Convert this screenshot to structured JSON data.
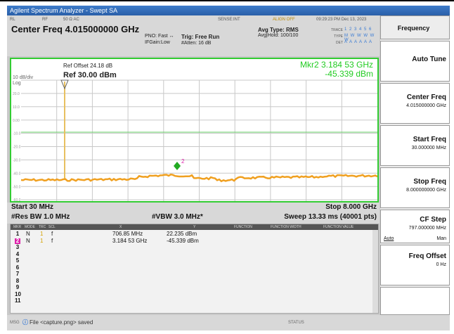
{
  "window": {
    "title": "Agilent Spectrum Analyzer - Swept SA"
  },
  "status_row": {
    "items": [
      "RL",
      "RF",
      "50 Ω  AC",
      "SENSE:INT",
      "ALIGN OFF",
      "09:29:23 PM Dec 13, 2023"
    ]
  },
  "header": {
    "center_freq": "Center Freq 4.015000000 GHz",
    "pno": "PNO: Fast  ↔",
    "ifgain": "IFGain:Low",
    "trig": "Trig: Free Run",
    "atten": "#Atten: 16 dB",
    "avg_type": "Avg Type: RMS",
    "avg_hold": "Avg|Hold: 100/100",
    "trace_label": "TRACE",
    "trace_vals": "1 2 3 4 5 6",
    "type_label": "TYPE",
    "type_vals": "M W W W W W",
    "det_label": "DET",
    "det_vals": "A A A A A A"
  },
  "plot": {
    "ref_offset": "Ref Offset 24.18 dB",
    "ref_level": "Ref 30.00 dBm",
    "scale": "10 dB/div",
    "scale_type": "Log",
    "mkr_line1": "Mkr2 3.184 53 GHz",
    "mkr_line2": "-45.339 dBm",
    "y_ticks": [
      "20.0",
      "10.0",
      "0.00",
      "-10.0",
      "-20.0",
      "-30.0",
      "-40.0",
      "-50.0",
      "-60.0"
    ],
    "marker2_label": "2",
    "colors": {
      "trace": "#f0a020",
      "grid": "#c8c8c8",
      "border": "#33cc33",
      "display_line": "#66cc66",
      "marker_text": "#22cc22",
      "marker1": "#e8c060",
      "marker2": "#22aa22"
    }
  },
  "bottom": {
    "start": "Start 30 MHz",
    "stop": "Stop 8.000 GHz",
    "res_bw": "#Res BW 1.0 MHz",
    "vbw": "#VBW 3.0 MHz*",
    "sweep": "Sweep  13.33 ms (40001 pts)"
  },
  "marker_table": {
    "headers": [
      "MKR",
      "MODE",
      "TRC",
      "SCL",
      "X",
      "Y",
      "FUNCTION",
      "FUNCTION WIDTH",
      "FUNCTION VALUE"
    ],
    "rows": [
      {
        "num": "1",
        "mode": "N",
        "trc": "1",
        "scl": "f",
        "x": "706.85 MHz",
        "y": "22.235 dBm"
      },
      {
        "num": "2",
        "mode": "N",
        "trc": "1",
        "scl": "f",
        "x": "3.184 53 GHz",
        "y": "-45.339 dBm"
      },
      {
        "num": "3"
      },
      {
        "num": "4"
      },
      {
        "num": "5"
      },
      {
        "num": "6"
      },
      {
        "num": "7"
      },
      {
        "num": "8"
      },
      {
        "num": "9"
      },
      {
        "num": "10"
      },
      {
        "num": "11"
      }
    ]
  },
  "statusbar": {
    "msg_label": "MSG",
    "message": "File <capture.png> saved",
    "status_label": "STATUS"
  },
  "softkeys": {
    "title": "Frequency",
    "auto_tune": "Auto Tune",
    "center_freq": "Center Freq",
    "center_freq_val": "4.015000000 GHz",
    "start_freq": "Start Freq",
    "start_freq_val": "30.000000 MHz",
    "stop_freq": "Stop Freq",
    "stop_freq_val": "8.000000000 GHz",
    "cf_step": "CF Step",
    "cf_step_val": "797.000000 MHz",
    "cf_auto": "Auto",
    "cf_man": "Man",
    "freq_offset": "Freq Offset",
    "freq_offset_val": "0 Hz"
  }
}
